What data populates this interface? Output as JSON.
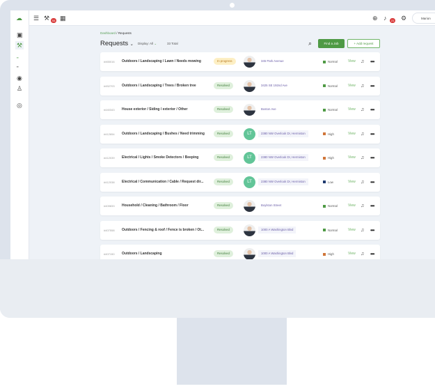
{
  "topbar": {
    "notification_count": "54",
    "alerts_count": "21",
    "user_name": "Marion"
  },
  "breadcrumb": {
    "parent": "Dashboard",
    "separator": "/",
    "current": "Requests"
  },
  "header": {
    "title": "Requests",
    "display_label": "Display",
    "display_value": "All",
    "total": "33 Total",
    "find_job": "Find a Job",
    "add_request": "+ Add request"
  },
  "colors": {
    "accent": "#4f9a45",
    "normal": "#4f9a45",
    "high": "#d0763a",
    "low": "#1f3a6e",
    "in_progress_bg": "#fdefc4",
    "resolved_bg": "#dff0dc"
  },
  "rows": [
    {
      "id": "#465016",
      "category": "Outdoors / Landscaping / Lawn / Needs mowing",
      "status": "In progress",
      "avatar": "photo",
      "address": "345 Park Avenue",
      "priority": "Normal",
      "view": "View"
    },
    {
      "id": "#452703",
      "category": "Outdoors / Landscaping / Trees / Broken tree",
      "status": "Resolved",
      "avatar": "photo",
      "address": "3425 SE 192nd Ave",
      "priority": "Normal",
      "view": "View"
    },
    {
      "id": "#440343",
      "category": "House exterior / Siding / exterior / Other",
      "status": "Resolved",
      "avatar": "photo",
      "address": "Boston Ave",
      "priority": "Normal",
      "view": "View"
    },
    {
      "id": "#412654",
      "category": "Outdoors / Landscaping / Bushes / Need trimming",
      "status": "Resolved",
      "avatar": "LT",
      "address": "2380 NW Overlook Dr, Hermiston",
      "priority": "High",
      "view": "View"
    },
    {
      "id": "#412039",
      "category": "Electrical / Lights / Smoke Detectors / Beeping",
      "status": "Resolved",
      "avatar": "LT",
      "address": "2380 NW Overlook Dr, Hermiston",
      "priority": "High",
      "view": "View"
    },
    {
      "id": "#412038",
      "category": "Electrical / Communication / Cable / Request dir...",
      "status": "Resolved",
      "avatar": "LT",
      "address": "2380 NW Overlook Dr, Hermiston",
      "priority": "Low",
      "view": "View"
    },
    {
      "id": "#409833",
      "category": "Household / Cleaning / Bathroom / Floor",
      "status": "Resolved",
      "avatar": "photo",
      "address": "Boylston Street",
      "priority": "Normal",
      "view": "View"
    },
    {
      "id": "#407558",
      "category": "Outdoors / Fencing & roof / Fence is broken / Ot...",
      "status": "Resolved",
      "avatar": "photo",
      "address": "1000 A Washington Blvd",
      "priority": "Normal",
      "view": "View"
    },
    {
      "id": "#407150",
      "category": "Outdoors / Landscaping",
      "status": "Resolved",
      "avatar": "photo",
      "address": "1000 A Washington Blvd",
      "priority": "High",
      "view": "View"
    }
  ]
}
